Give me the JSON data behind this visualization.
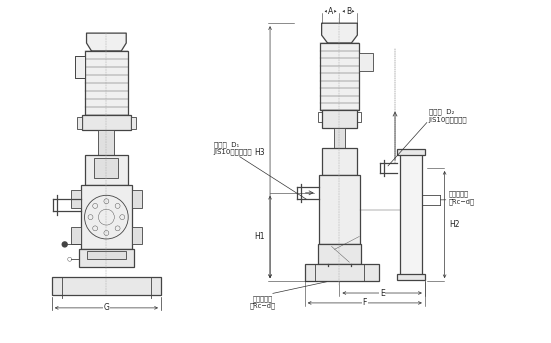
{
  "bg_color": "#ffffff",
  "line_color": "#444444",
  "dim_color": "#333333",
  "text_color": "#222222",
  "fig_width": 5.51,
  "fig_height": 3.43,
  "labels": {
    "G": "G",
    "A": "A",
    "B": "B",
    "E": "E",
    "F": "F",
    "H1": "H1",
    "H2": "H2",
    "H3": "H3",
    "suction": "吸気口  D₁\nJIS10・フランジ",
    "discharge": "吐出口  D₂\nJIS10・フランジ",
    "cooling_in": "冷却水入口\n（Rc−d）",
    "cooling_out": "冷却水出口\n（Rc−d）"
  }
}
